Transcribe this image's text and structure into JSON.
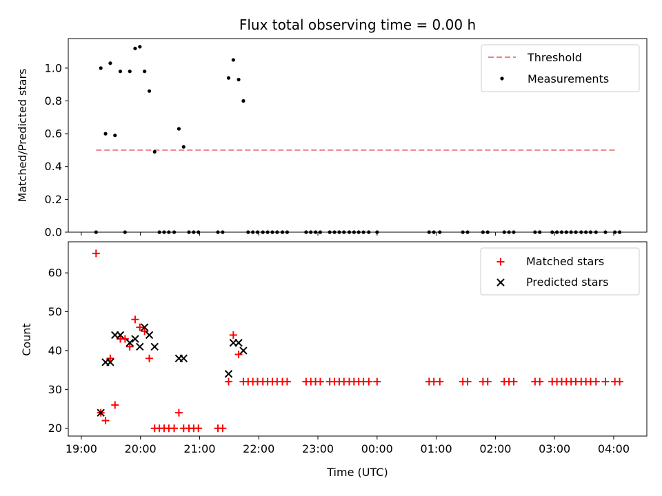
{
  "chart_data": [
    {
      "type": "scatter",
      "title": "Flux total observing time = 0.00 h",
      "xlabel": "",
      "ylabel": "Matched/Predicted stars",
      "xlim": [
        18.78,
        28.56
      ],
      "ylim": [
        0.0,
        1.18
      ],
      "yticks": [
        0.0,
        0.2,
        0.4,
        0.6,
        0.8,
        1.0
      ],
      "ytick_labels": [
        "0.0",
        "0.2",
        "0.4",
        "0.6",
        "0.8",
        "1.0"
      ],
      "xticks": [
        19,
        20,
        21,
        22,
        23,
        24,
        25,
        26,
        27,
        28
      ],
      "show_xtick_labels": false,
      "grid": false,
      "legend_position": "top-right",
      "threshold": {
        "name": "Threshold",
        "value": 0.5,
        "x_range": [
          19.25,
          28.05
        ],
        "color": "#f08080"
      },
      "series": [
        {
          "name": "Measurements",
          "color": "#000000",
          "x": [
            19.25,
            19.33,
            19.41,
            19.49,
            19.57,
            19.66,
            19.74,
            19.82,
            19.91,
            19.99,
            20.07,
            20.15,
            20.24,
            20.32,
            20.4,
            20.48,
            20.57,
            20.65,
            20.73,
            20.82,
            20.9,
            20.98,
            21.31,
            21.39,
            21.49,
            21.57,
            21.66,
            21.74,
            21.82,
            21.9,
            21.98,
            22.07,
            22.15,
            22.23,
            22.31,
            22.4,
            22.48,
            22.8,
            22.88,
            22.96,
            23.04,
            23.2,
            23.28,
            23.36,
            23.44,
            23.53,
            23.61,
            23.69,
            23.77,
            23.86,
            24.0,
            24.88,
            24.96,
            25.06,
            25.45,
            25.53,
            25.79,
            25.87,
            26.15,
            26.23,
            26.31,
            26.67,
            26.75,
            26.96,
            27.04,
            27.12,
            27.2,
            27.28,
            27.36,
            27.45,
            27.53,
            27.61,
            27.7,
            27.86,
            28.02,
            28.1
          ],
          "y": [
            0,
            1.0,
            0.6,
            1.03,
            0.59,
            0.98,
            0,
            0.98,
            1.12,
            1.13,
            0.98,
            0.86,
            0.49,
            0,
            0,
            0,
            0,
            0.63,
            0.52,
            0,
            0,
            0,
            0,
            0,
            0.94,
            1.05,
            0.93,
            0.8,
            0,
            0,
            0,
            0,
            0,
            0,
            0,
            0,
            0,
            0,
            0,
            0,
            0,
            0,
            0,
            0,
            0,
            0,
            0,
            0,
            0,
            0,
            0,
            0,
            0,
            0,
            0,
            0,
            0,
            0,
            0,
            0,
            0,
            0,
            0,
            0,
            0,
            0,
            0,
            0,
            0,
            0,
            0,
            0,
            0,
            0,
            0,
            0
          ]
        }
      ]
    },
    {
      "type": "scatter",
      "title": "",
      "xlabel": "Time (UTC)",
      "ylabel": "Count",
      "xlim": [
        18.78,
        28.56
      ],
      "ylim": [
        18,
        68
      ],
      "yticks": [
        20,
        30,
        40,
        50,
        60
      ],
      "ytick_labels": [
        "20",
        "30",
        "40",
        "50",
        "60"
      ],
      "xticks": [
        19,
        20,
        21,
        22,
        23,
        24,
        25,
        26,
        27,
        28
      ],
      "xtick_labels": [
        "19:00",
        "20:00",
        "21:00",
        "22:00",
        "23:00",
        "00:00",
        "01:00",
        "02:00",
        "03:00",
        "04:00"
      ],
      "grid": false,
      "legend_position": "top-right",
      "series": [
        {
          "name": "Matched stars",
          "marker": "plus",
          "color": "#ff0000",
          "x": [
            19.25,
            19.33,
            19.41,
            19.49,
            19.57,
            19.66,
            19.74,
            19.82,
            19.91,
            19.99,
            20.07,
            20.15,
            20.24,
            20.32,
            20.4,
            20.48,
            20.57,
            20.65,
            20.73,
            20.82,
            20.9,
            20.98,
            21.31,
            21.39,
            21.49,
            21.57,
            21.66,
            21.74,
            21.82,
            21.9,
            21.98,
            22.07,
            22.15,
            22.23,
            22.31,
            22.4,
            22.48,
            22.8,
            22.88,
            22.96,
            23.04,
            23.2,
            23.28,
            23.36,
            23.44,
            23.53,
            23.61,
            23.69,
            23.77,
            23.86,
            24.0,
            24.88,
            24.96,
            25.06,
            25.45,
            25.53,
            25.79,
            25.87,
            26.15,
            26.23,
            26.31,
            26.67,
            26.75,
            26.96,
            27.04,
            27.12,
            27.2,
            27.28,
            27.36,
            27.45,
            27.53,
            27.61,
            27.7,
            27.86,
            28.02,
            28.1
          ],
          "y": [
            65,
            24,
            22,
            38,
            26,
            43,
            43,
            41,
            48,
            46,
            45,
            38,
            20,
            20,
            20,
            20,
            20,
            24,
            20,
            20,
            20,
            20,
            20,
            20,
            32,
            44,
            39,
            32,
            32,
            32,
            32,
            32,
            32,
            32,
            32,
            32,
            32,
            32,
            32,
            32,
            32,
            32,
            32,
            32,
            32,
            32,
            32,
            32,
            32,
            32,
            32,
            32,
            32,
            32,
            32,
            32,
            32,
            32,
            32,
            32,
            32,
            32,
            32,
            32,
            32,
            32,
            32,
            32,
            32,
            32,
            32,
            32,
            32,
            32,
            32,
            32
          ]
        },
        {
          "name": "Predicted stars",
          "marker": "x",
          "color": "#000000",
          "x": [
            19.33,
            19.41,
            19.49,
            19.57,
            19.66,
            19.82,
            19.91,
            19.99,
            20.07,
            20.15,
            20.24,
            20.65,
            20.73,
            21.49,
            21.57,
            21.66,
            21.74
          ],
          "y": [
            24,
            37,
            37,
            44,
            44,
            42,
            43,
            41,
            46,
            44,
            41,
            38,
            38,
            34,
            42,
            42,
            40
          ]
        }
      ]
    }
  ]
}
